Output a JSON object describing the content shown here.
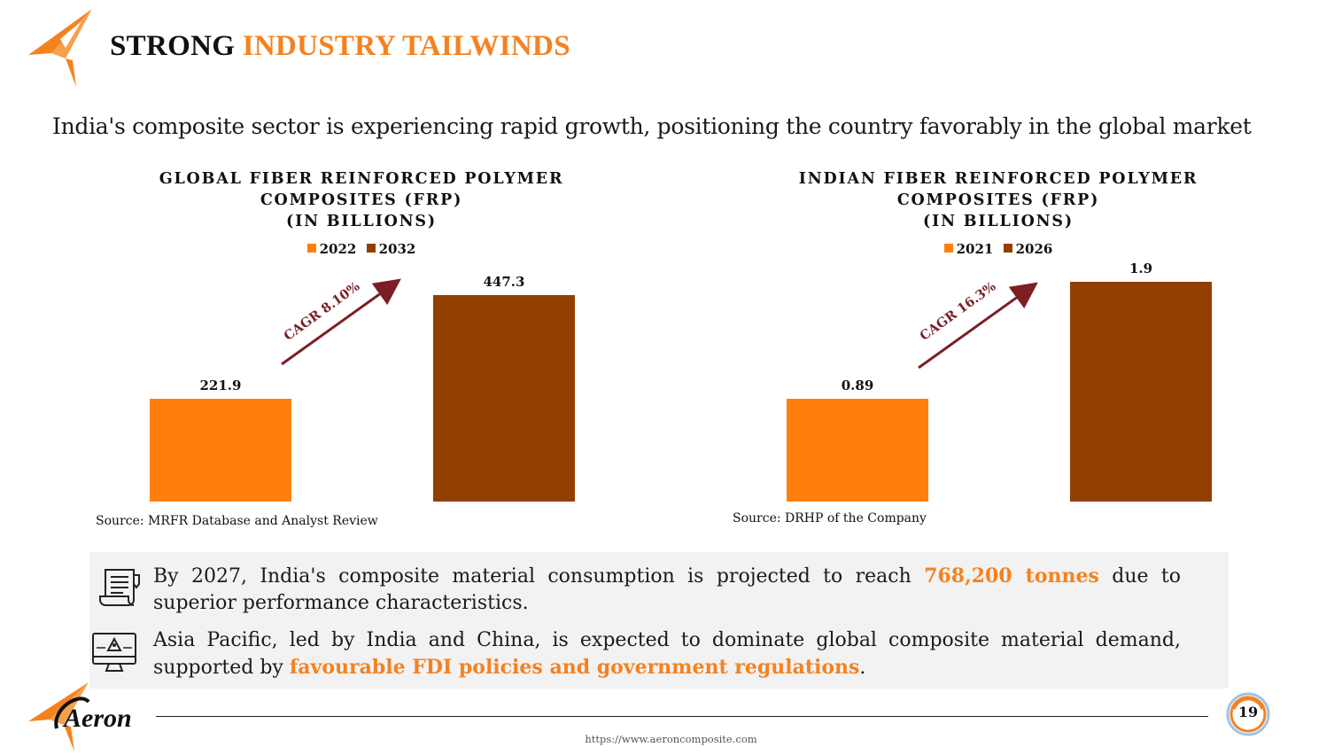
{
  "header": {
    "title_part1": "STRONG",
    "title_part2": "INDUSTRY TAILWINDS"
  },
  "subtitle": "India's composite sector is experiencing rapid growth, positioning the country favorably in the global market",
  "colors": {
    "accent": "#f58220",
    "bar_first": "#ff7f0e",
    "bar_second": "#933f00",
    "arrow": "#7b1f25",
    "box_bg": "#f2f2f2"
  },
  "chart_data": [
    {
      "type": "bar",
      "title_line1": "GLOBAL FIBER REINFORCED POLYMER",
      "title_line2": "COMPOSITES (FRP)",
      "title_line3": "(IN BILLIONS)",
      "categories": [
        "2022",
        "2032"
      ],
      "values": [
        221.9,
        447.3
      ],
      "value_labels": [
        "221.9",
        "447.3"
      ],
      "annotation": "CAGR 8.10%",
      "source": "Source: MRFR Database and Analyst Review"
    },
    {
      "type": "bar",
      "title_line1": "INDIAN FIBER REINFORCED POLYMER",
      "title_line2": "COMPOSITES (FRP)",
      "title_line3": "(IN BILLIONS)",
      "categories": [
        "2021",
        "2026"
      ],
      "values": [
        0.89,
        1.9
      ],
      "value_labels": [
        "0.89",
        "1.9"
      ],
      "annotation": "CAGR 16.3%",
      "source": "Source: DRHP of the Company"
    }
  ],
  "info": {
    "point1_before": "By 2027, India's composite material consumption is projected to reach ",
    "point1_highlight": "768,200 tonnes",
    "point1_after": " due to superior performance characteristics.",
    "point2_before": "Asia Pacific, led by India and China, is expected to dominate global composite material demand, supported by ",
    "point2_highlight": "favourable FDI policies and government regulations",
    "point2_after": "."
  },
  "footer": {
    "brand": "Aeron",
    "url": "https://www.aeroncomposite.com",
    "page_number": "19"
  }
}
